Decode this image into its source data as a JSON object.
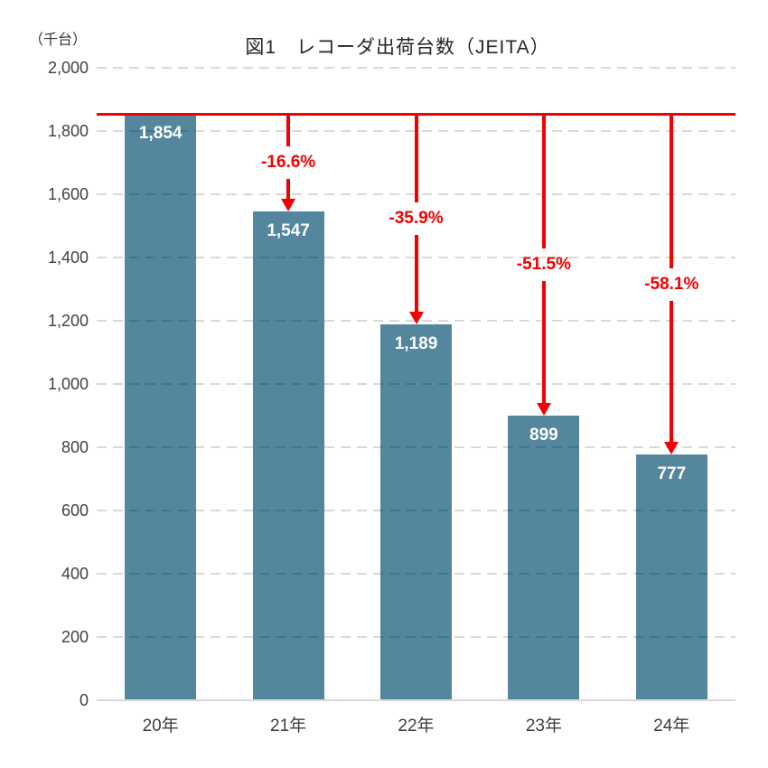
{
  "chart_data": {
    "type": "bar",
    "title": "図1　レコーダ出荷台数（JEITA）",
    "unit_label": "（千台）",
    "categories": [
      "20年",
      "21年",
      "22年",
      "23年",
      "24年"
    ],
    "values": [
      1854,
      1547,
      1189,
      899,
      777
    ],
    "value_labels": [
      "1,854",
      "1,547",
      "1,189",
      "899",
      "777"
    ],
    "pct_change_labels": [
      "-16.6%",
      "-35.9%",
      "-51.5%",
      "-58.1%"
    ],
    "reference_value": 1854,
    "ylim": [
      0,
      2000
    ],
    "ytick_step": 200,
    "ytick_labels": [
      "0",
      "200",
      "400",
      "600",
      "800",
      "1,000",
      "1,200",
      "1,400",
      "1,600",
      "1,800",
      "2,000"
    ],
    "grid": "dashed-horizontal",
    "legend": "none",
    "colors": {
      "bar": "#54869E",
      "arrow_red": "#F40000",
      "bar_value_text": "#FFFFFF",
      "axis_text": "#404040",
      "gridline": "#D9D9D9",
      "title_text": "#262626"
    }
  }
}
